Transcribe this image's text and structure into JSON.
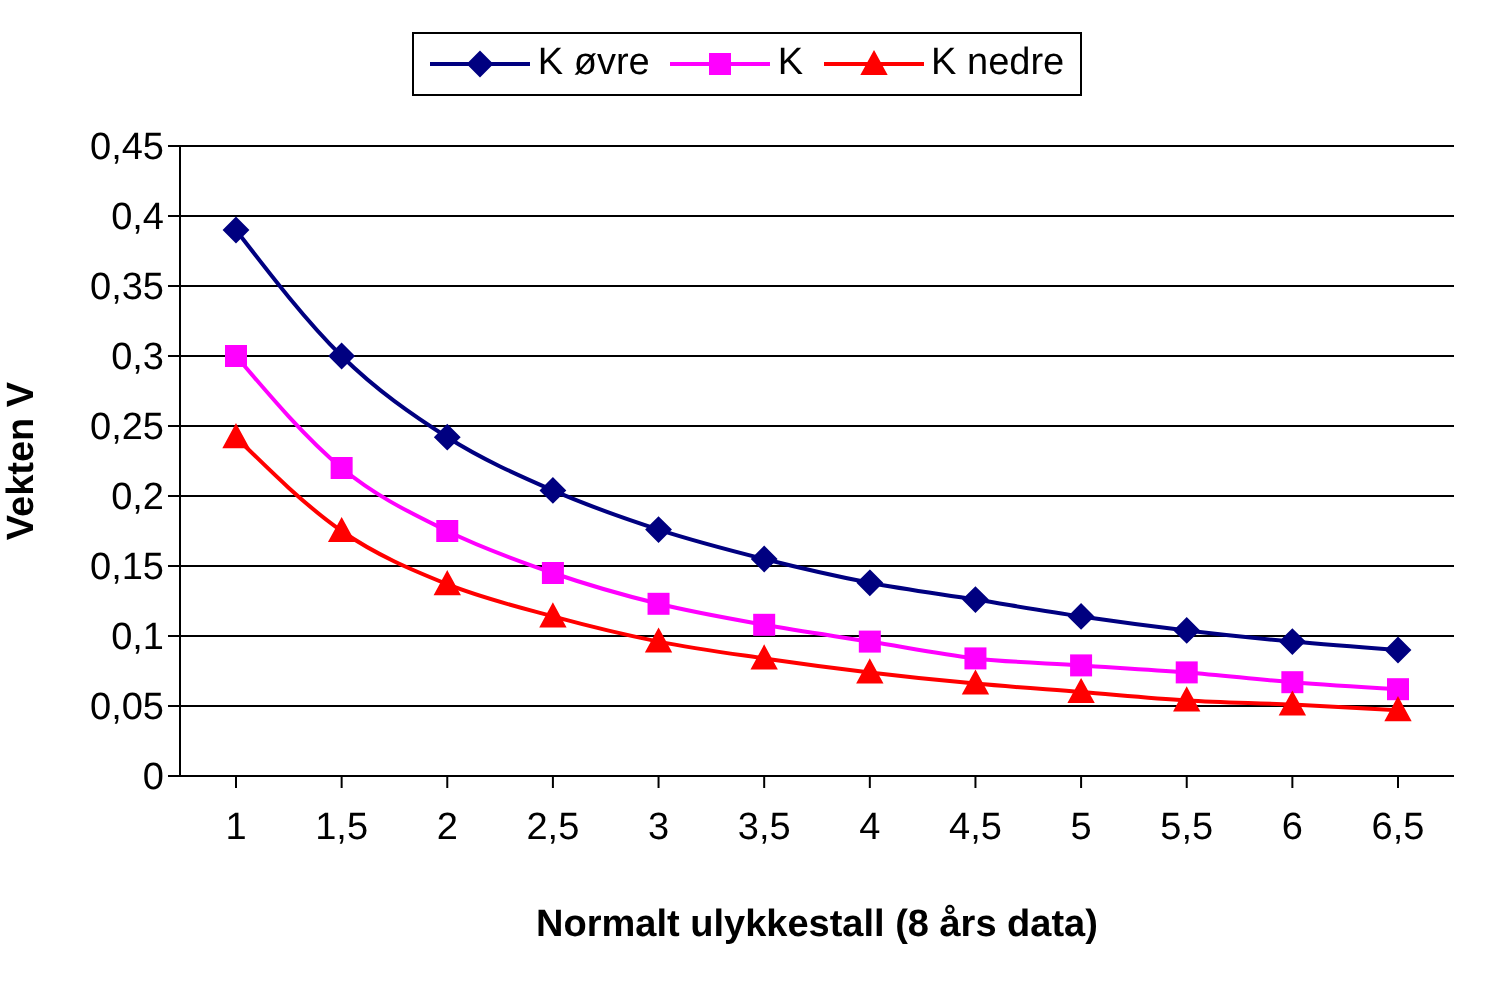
{
  "chart_data": {
    "type": "line",
    "xlabel": "Normalt ulykkestall (8 års data)",
    "ylabel": "Vekten V",
    "categories": [
      "1",
      "1,5",
      "2",
      "2,5",
      "3",
      "3,5",
      "4",
      "4,5",
      "5",
      "5,5",
      "6",
      "6,5"
    ],
    "series": [
      {
        "name": "K øvre",
        "color": "#000080",
        "marker": "diamond",
        "values": [
          0.39,
          0.3,
          0.242,
          0.204,
          0.176,
          0.155,
          0.138,
          0.126,
          0.114,
          0.104,
          0.096,
          0.09
        ]
      },
      {
        "name": "K",
        "color": "#ff00ff",
        "marker": "square",
        "values": [
          0.3,
          0.22,
          0.175,
          0.145,
          0.123,
          0.108,
          0.096,
          0.084,
          0.079,
          0.074,
          0.067,
          0.062
        ]
      },
      {
        "name": "K nedre",
        "color": "#ff0000",
        "marker": "triangle",
        "values": [
          0.242,
          0.175,
          0.137,
          0.114,
          0.096,
          0.084,
          0.074,
          0.066,
          0.06,
          0.054,
          0.051,
          0.047
        ]
      }
    ],
    "ylim": [
      0,
      0.45
    ],
    "yticks": [
      {
        "value": 0,
        "label": "0"
      },
      {
        "value": 0.05,
        "label": "0,05"
      },
      {
        "value": 0.1,
        "label": "0,1"
      },
      {
        "value": 0.15,
        "label": "0,15"
      },
      {
        "value": 0.2,
        "label": "0,2"
      },
      {
        "value": 0.25,
        "label": "0,25"
      },
      {
        "value": 0.3,
        "label": "0,3"
      },
      {
        "value": 0.35,
        "label": "0,35"
      },
      {
        "value": 0.4,
        "label": "0,4"
      },
      {
        "value": 0.45,
        "label": "0,45"
      }
    ],
    "grid": "y",
    "legend": "top"
  }
}
